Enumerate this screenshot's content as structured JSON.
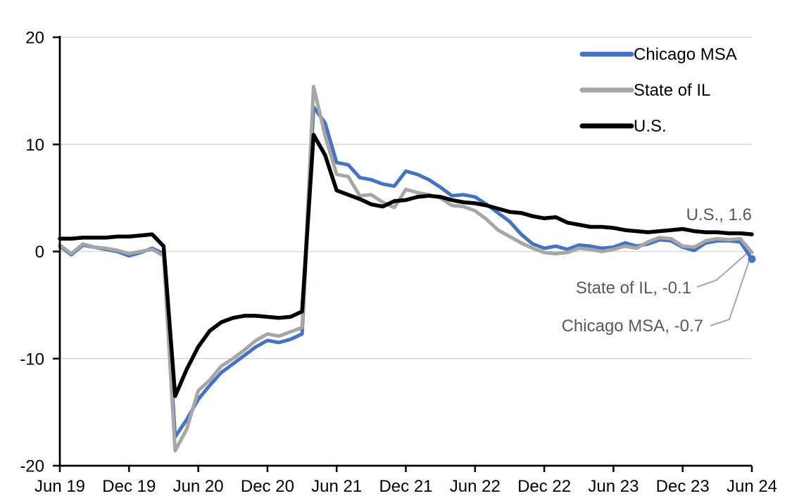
{
  "chart_data": {
    "type": "line",
    "title": "",
    "xlabel": "",
    "ylabel": "",
    "ylim": [
      -20,
      20
    ],
    "y_ticks": [
      -20,
      -10,
      0,
      10,
      20
    ],
    "grid": "horizontal",
    "legend_position": "top-right-inside",
    "x_unit": "month",
    "x_range": [
      "Jun 19",
      "Jun 24"
    ],
    "x_tick_positions": [
      0,
      6,
      12,
      18,
      24,
      30,
      36,
      42,
      48,
      54,
      60
    ],
    "x_tick_labels": [
      "Jun 19",
      "Dec 19",
      "Jun 20",
      "Dec 20",
      "Jun 21",
      "Dec 21",
      "Jun 22",
      "Dec 22",
      "Jun 23",
      "Dec 23",
      "Jun 24"
    ],
    "series": [
      {
        "name": "Chicago MSA",
        "color": "#4472C4",
        "end_value": -0.7,
        "values": [
          0.5,
          -0.3,
          0.6,
          0.4,
          0.2,
          0.0,
          -0.4,
          -0.1,
          0.3,
          -0.2,
          -17.3,
          -15.7,
          -13.8,
          -12.5,
          -11.3,
          -10.5,
          -9.7,
          -8.9,
          -8.3,
          -8.5,
          -8.2,
          -7.7,
          13.5,
          12.0,
          8.3,
          8.1,
          6.9,
          6.7,
          6.3,
          6.1,
          7.5,
          7.2,
          6.7,
          6.0,
          5.2,
          5.3,
          5.1,
          4.4,
          3.6,
          2.8,
          1.6,
          0.7,
          0.3,
          0.5,
          0.2,
          0.6,
          0.5,
          0.3,
          0.4,
          0.8,
          0.5,
          0.7,
          1.1,
          1.0,
          0.4,
          0.1,
          0.8,
          1.0,
          1.0,
          0.9,
          -0.7
        ]
      },
      {
        "name": "State of IL",
        "color": "#A6A6A6",
        "end_value": -0.1,
        "values": [
          0.6,
          -0.2,
          0.7,
          0.4,
          0.3,
          0.1,
          -0.2,
          0.0,
          0.2,
          -0.4,
          -18.6,
          -16.6,
          -13.0,
          -12.0,
          -10.7,
          -10.0,
          -9.2,
          -8.3,
          -7.7,
          -7.9,
          -7.5,
          -7.1,
          15.4,
          10.8,
          7.2,
          7.0,
          5.2,
          5.3,
          4.6,
          4.1,
          5.8,
          5.5,
          5.3,
          5.0,
          4.3,
          4.2,
          3.8,
          3.0,
          2.0,
          1.4,
          0.8,
          0.3,
          -0.1,
          -0.2,
          -0.1,
          0.3,
          0.2,
          0.0,
          0.2,
          0.5,
          0.3,
          0.9,
          1.3,
          1.2,
          0.5,
          0.4,
          1.0,
          1.2,
          1.1,
          1.2,
          -0.1
        ]
      },
      {
        "name": "U.S.",
        "color": "#000000",
        "end_value": 1.6,
        "values": [
          1.2,
          1.2,
          1.3,
          1.3,
          1.3,
          1.4,
          1.4,
          1.5,
          1.6,
          0.5,
          -13.5,
          -11.0,
          -8.9,
          -7.4,
          -6.6,
          -6.2,
          -6.0,
          -6.0,
          -6.1,
          -6.2,
          -6.1,
          -5.6,
          10.9,
          9.0,
          5.7,
          5.3,
          4.9,
          4.4,
          4.2,
          4.7,
          4.8,
          5.1,
          5.2,
          5.1,
          4.8,
          4.6,
          4.5,
          4.3,
          4.0,
          3.7,
          3.6,
          3.3,
          3.1,
          3.2,
          2.7,
          2.5,
          2.3,
          2.3,
          2.2,
          2.0,
          1.9,
          1.8,
          1.9,
          2.0,
          2.1,
          1.9,
          1.8,
          1.8,
          1.7,
          1.7,
          1.6
        ]
      }
    ],
    "end_marker_series": "Chicago MSA",
    "legend": {
      "items": [
        {
          "label": "Chicago MSA",
          "color": "#4472C4"
        },
        {
          "label": "State of IL",
          "color": "#A6A6A6"
        },
        {
          "label": "U.S.",
          "color": "#000000"
        }
      ]
    },
    "annotations": [
      {
        "label": "U.S., 1.6",
        "series": "U.S.",
        "value": 1.6,
        "leader": false
      },
      {
        "label": "State of IL, -0.1",
        "series": "State of IL",
        "value": -0.1,
        "leader": true
      },
      {
        "label": "Chicago MSA, -0.7",
        "series": "Chicago MSA",
        "value": -0.7,
        "leader": true
      }
    ],
    "style": {
      "background": "#FFFFFF",
      "grid_color": "#D9D9D9",
      "axis_color": "#000000",
      "tick_label_color": "#000000",
      "legend_text_color": "#000000",
      "annotation_text_color": "#595959",
      "leader_line_color": "#A6A6A6"
    }
  }
}
